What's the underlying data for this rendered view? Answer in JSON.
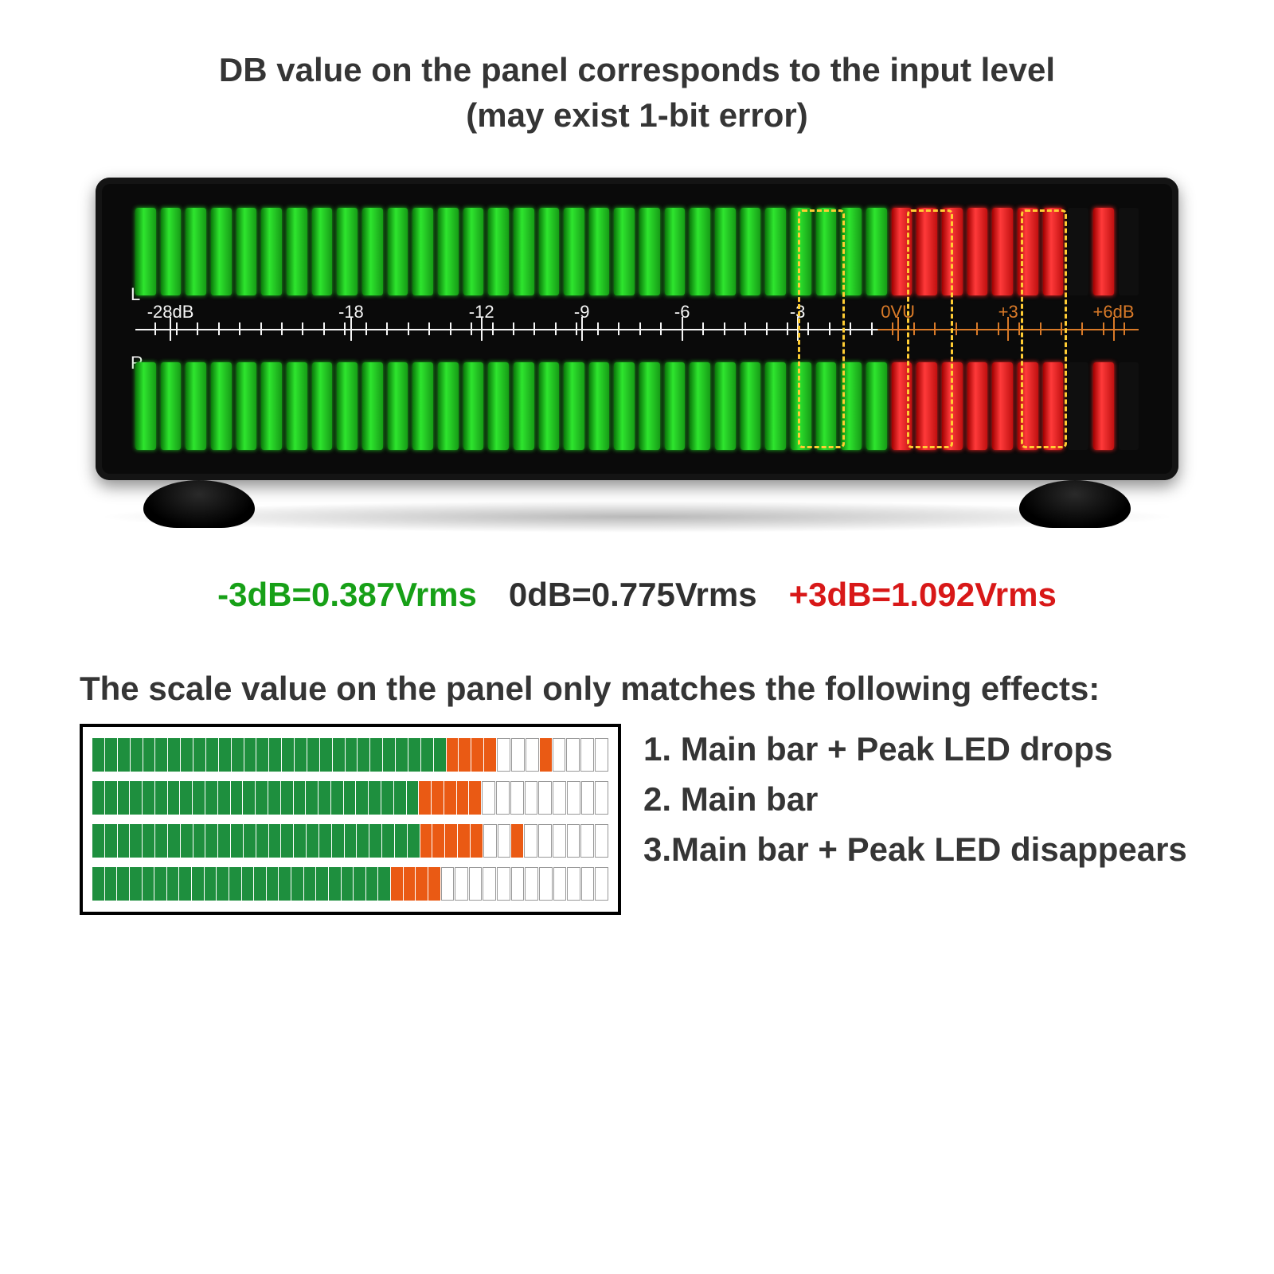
{
  "heading_line1": "DB value on the panel corresponds to the input level",
  "heading_line2": "(may exist 1-bit error)",
  "meter": {
    "channel_labels": {
      "left": "L",
      "right": "R"
    },
    "total_segments": 40,
    "top_row": {
      "green_count": 30,
      "red_count": 7,
      "gap_count": 1,
      "peak_count": 1
    },
    "bottom_row": {
      "green_count": 30,
      "red_count": 7,
      "gap_count": 1,
      "peak_count": 1
    },
    "scale": {
      "white_fraction": 0.74,
      "orange_fraction": 0.26,
      "white_color": "#f5f5f5",
      "orange_color": "#d97a28",
      "major_ticks": [
        {
          "pos": 0.035,
          "label": "-28dB",
          "color": "#f5f5f5"
        },
        {
          "pos": 0.215,
          "label": "-18",
          "color": "#f5f5f5"
        },
        {
          "pos": 0.345,
          "label": "-12",
          "color": "#f5f5f5"
        },
        {
          "pos": 0.445,
          "label": "-9",
          "color": "#f5f5f5"
        },
        {
          "pos": 0.545,
          "label": "-6",
          "color": "#f5f5f5"
        },
        {
          "pos": 0.66,
          "label": "-3",
          "color": "#f5f5f5"
        },
        {
          "pos": 0.76,
          "label": "0VU",
          "color": "#d97a28"
        },
        {
          "pos": 0.87,
          "label": "+3",
          "color": "#d97a28"
        },
        {
          "pos": 0.975,
          "label": "+6dB",
          "color": "#d97a28"
        }
      ],
      "minor_spacing": 0.021
    },
    "highlights": [
      {
        "left_pct": 64.0,
        "width_pct": 4.5
      },
      {
        "left_pct": 74.5,
        "width_pct": 4.5
      },
      {
        "left_pct": 85.5,
        "width_pct": 4.5
      }
    ],
    "colors": {
      "green": "#1fbf1f",
      "red": "#ff2a2a",
      "device_bg": "#0a0a0a",
      "highlight_border": "#ffcc33"
    }
  },
  "legend": {
    "items": [
      {
        "text": "-3dB=0.387Vrms",
        "color": "#17a017"
      },
      {
        "text": "0dB=0.775Vrms",
        "color": "#303030"
      },
      {
        "text": "+3dB=1.092Vrms",
        "color": "#d81818"
      }
    ]
  },
  "subheading": "The scale value on the panel only matches the following effects:",
  "effects": {
    "segments_per_row": 40,
    "rows": [
      {
        "green": 28,
        "orange": 4,
        "off_before_peak": 3,
        "peak_orange": 1,
        "off_after": 4
      },
      {
        "green": 26,
        "orange": 5,
        "off_before_peak": 0,
        "peak_orange": 0,
        "off_after": 9
      },
      {
        "green": 26,
        "orange": 5,
        "off_before_peak": 2,
        "peak_orange": 1,
        "off_after": 6
      },
      {
        "green": 24,
        "orange": 4,
        "off_before_peak": 0,
        "peak_orange": 0,
        "off_after": 12
      }
    ],
    "colors": {
      "green": "#1e8f3e",
      "orange": "#ea5a14",
      "off_border": "#999999"
    },
    "list": [
      "1. Main bar + Peak LED drops",
      "2. Main bar",
      "3.Main bar + Peak LED disappears"
    ]
  }
}
